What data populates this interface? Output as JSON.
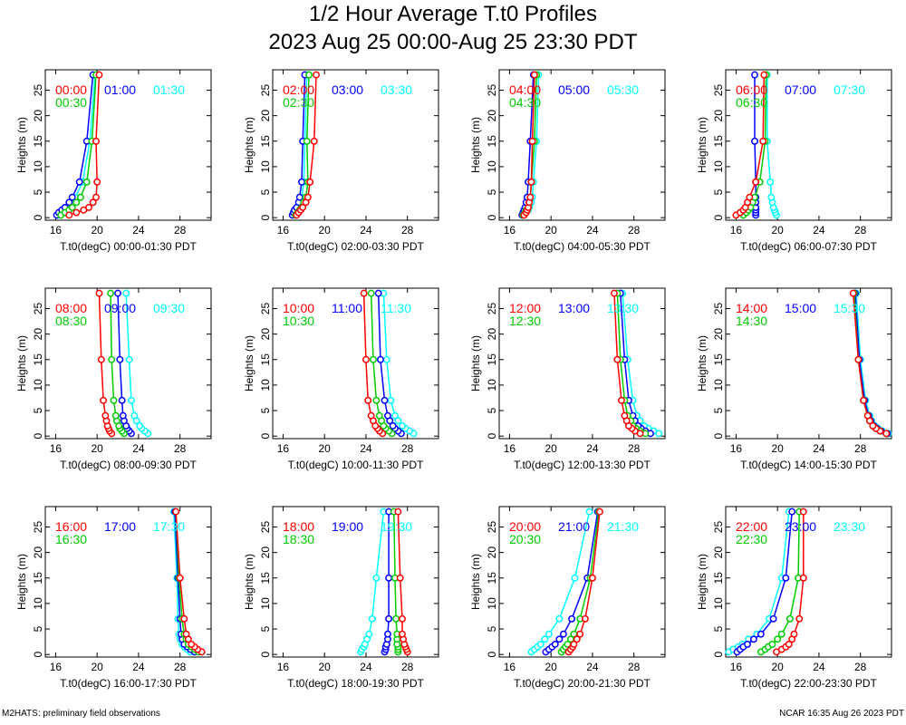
{
  "title": "1/2 Hour Average T.t0 Profiles",
  "subtitle": "2023 Aug 25 00:00-Aug 25 23:30 PDT",
  "footer_left": "M2HATS: preliminary field observations",
  "footer_right": "NCAR 16:35 Aug 26 2023 PDT",
  "series_colors": [
    "#ff0000",
    "#0000ff",
    "#00ffff",
    "#00cc00"
  ],
  "chart_data": [
    {
      "type": "line",
      "xlabel": "T.t0(degC) 00:00-01:30 PDT",
      "ylabel": "Heights (m)",
      "xlim": [
        15,
        31
      ],
      "ylim": [
        -0.5,
        29
      ],
      "xticks": [
        16,
        20,
        24,
        28
      ],
      "yticks": [
        0,
        5,
        10,
        15,
        20,
        25
      ],
      "heights": [
        0.5,
        1,
        1.5,
        2,
        3,
        4,
        7,
        15,
        28
      ],
      "series": [
        {
          "name": "00:00",
          "values": [
            17.3,
            18,
            18.7,
            19.2,
            19.6,
            19.9,
            20,
            19.9,
            20.2
          ]
        },
        {
          "name": "01:00",
          "values": [
            16.1,
            16.3,
            16.6,
            16.9,
            17.3,
            17.6,
            18.3,
            19,
            19.6
          ]
        },
        {
          "name": "01:30",
          "values": [
            16.2,
            16.5,
            16.8,
            17.1,
            17.6,
            17.9,
            18.6,
            19.3,
            19.8
          ]
        },
        {
          "name": "00:30",
          "values": [
            16.5,
            16.9,
            17.3,
            17.6,
            18,
            18.4,
            19,
            19.5,
            19.9
          ]
        }
      ]
    },
    {
      "type": "line",
      "xlabel": "T.t0(degC) 02:00-03:30 PDT",
      "ylabel": "Heights (m)",
      "xlim": [
        15,
        31
      ],
      "ylim": [
        -0.5,
        29
      ],
      "xticks": [
        16,
        20,
        24,
        28
      ],
      "yticks": [
        0,
        5,
        10,
        15,
        20,
        25
      ],
      "heights": [
        0.5,
        1,
        1.5,
        2,
        3,
        4,
        7,
        15,
        28
      ],
      "series": [
        {
          "name": "02:00",
          "values": [
            17.3,
            17.5,
            17.7,
            17.9,
            18.2,
            18.4,
            18.6,
            19,
            19.2
          ]
        },
        {
          "name": "03:00",
          "values": [
            16.9,
            17,
            17.1,
            17.3,
            17.5,
            17.6,
            17.8,
            17.9,
            18.1
          ]
        },
        {
          "name": "03:30",
          "values": [
            17.1,
            17.2,
            17.3,
            17.5,
            17.7,
            17.8,
            18,
            18.1,
            18.3
          ]
        },
        {
          "name": "02:30",
          "values": [
            17.2,
            17.4,
            17.6,
            17.8,
            18,
            18.2,
            18.4,
            18.3,
            18.5
          ]
        }
      ]
    },
    {
      "type": "line",
      "xlabel": "T.t0(degC) 04:00-05:30 PDT",
      "ylabel": "Heights (m)",
      "xlim": [
        15,
        31
      ],
      "ylim": [
        -0.5,
        29
      ],
      "xticks": [
        16,
        20,
        24,
        28
      ],
      "yticks": [
        0,
        5,
        10,
        15,
        20,
        25
      ],
      "heights": [
        0.5,
        1,
        1.5,
        2,
        3,
        4,
        7,
        15,
        28
      ],
      "series": [
        {
          "name": "04:00",
          "values": [
            17.4,
            17.6,
            17.7,
            17.8,
            17.9,
            18,
            18.1,
            18.2,
            18.4
          ]
        },
        {
          "name": "05:00",
          "values": [
            17.2,
            17.3,
            17.4,
            17.5,
            17.6,
            17.7,
            17.8,
            18,
            18.3
          ]
        },
        {
          "name": "05:30",
          "values": [
            17.4,
            17.6,
            17.8,
            17.9,
            18.1,
            18.2,
            18.3,
            18.6,
            18.8
          ]
        },
        {
          "name": "04:30",
          "values": [
            17.3,
            17.5,
            17.6,
            17.8,
            17.9,
            18,
            18.1,
            18.4,
            18.6
          ]
        }
      ]
    },
    {
      "type": "line",
      "xlabel": "T.t0(degC) 06:00-07:30 PDT",
      "ylabel": "Heights (m)",
      "xlim": [
        15,
        31
      ],
      "ylim": [
        -0.5,
        29
      ],
      "xticks": [
        16,
        20,
        24,
        28
      ],
      "yticks": [
        0,
        5,
        10,
        15,
        20,
        25
      ],
      "heights": [
        0.5,
        1,
        1.5,
        2,
        3,
        4,
        7,
        15,
        28
      ],
      "series": [
        {
          "name": "06:00",
          "values": [
            16,
            16.4,
            16.7,
            16.9,
            17.1,
            17.3,
            17.9,
            18.6,
            18.7
          ]
        },
        {
          "name": "07:00",
          "values": [
            17.9,
            17.9,
            17.9,
            17.9,
            17.9,
            17.9,
            17.9,
            17.8,
            17.8
          ]
        },
        {
          "name": "07:30",
          "values": [
            19.9,
            19.8,
            19.7,
            19.6,
            19.5,
            19.4,
            19.3,
            19,
            19
          ]
        },
        {
          "name": "06:30",
          "values": [
            16.7,
            17,
            17.2,
            17.4,
            17.6,
            17.8,
            18.3,
            18.8,
            18.9
          ]
        }
      ]
    },
    {
      "type": "line",
      "xlabel": "T.t0(degC) 08:00-09:30 PDT",
      "ylabel": "Heights (m)",
      "xlim": [
        15,
        31
      ],
      "ylim": [
        -0.5,
        29
      ],
      "xticks": [
        16,
        20,
        24,
        28
      ],
      "yticks": [
        0,
        5,
        10,
        15,
        20,
        25
      ],
      "heights": [
        0.5,
        1,
        1.5,
        2,
        3,
        4,
        7,
        15,
        28
      ],
      "series": [
        {
          "name": "08:00",
          "values": [
            21.4,
            21.2,
            21.1,
            21,
            20.9,
            20.8,
            20.6,
            20.4,
            20.2
          ]
        },
        {
          "name": "09:00",
          "values": [
            23.3,
            23.1,
            22.9,
            22.8,
            22.6,
            22.5,
            22.4,
            22.2,
            22
          ]
        },
        {
          "name": "09:30",
          "values": [
            24.9,
            24.6,
            24.3,
            24.1,
            23.8,
            23.6,
            23.3,
            23.1,
            22.8
          ]
        },
        {
          "name": "08:30",
          "values": [
            22.6,
            22.4,
            22.2,
            22.1,
            21.9,
            21.8,
            21.6,
            21.4,
            21.3
          ]
        }
      ]
    },
    {
      "type": "line",
      "xlabel": "T.t0(degC) 10:00-11:30 PDT",
      "ylabel": "Heights (m)",
      "xlim": [
        15,
        31
      ],
      "ylim": [
        -0.5,
        29
      ],
      "xticks": [
        16,
        20,
        24,
        28
      ],
      "yticks": [
        0,
        5,
        10,
        15,
        20,
        25
      ],
      "heights": [
        0.5,
        1,
        1.5,
        2,
        3,
        4,
        7,
        15,
        28
      ],
      "series": [
        {
          "name": "10:00",
          "values": [
            25.6,
            25.3,
            25.1,
            24.9,
            24.7,
            24.5,
            24.2,
            24,
            23.8
          ]
        },
        {
          "name": "11:00",
          "values": [
            27.4,
            27.1,
            26.8,
            26.6,
            26.3,
            26.1,
            25.8,
            25.4,
            25.2
          ]
        },
        {
          "name": "11:30",
          "values": [
            28.6,
            28.2,
            27.8,
            27.5,
            27.1,
            26.8,
            26.4,
            26,
            25.7
          ]
        },
        {
          "name": "10:30",
          "values": [
            26.5,
            26.2,
            25.9,
            25.7,
            25.5,
            25.3,
            25,
            24.7,
            24.5
          ]
        }
      ]
    },
    {
      "type": "line",
      "xlabel": "T.t0(degC) 12:00-13:30 PDT",
      "ylabel": "Heights (m)",
      "xlim": [
        15,
        31
      ],
      "ylim": [
        -0.5,
        29
      ],
      "xticks": [
        16,
        20,
        24,
        28
      ],
      "yticks": [
        0,
        5,
        10,
        15,
        20,
        25
      ],
      "heights": [
        0.5,
        1,
        1.5,
        2,
        3,
        4,
        7,
        15,
        28
      ],
      "series": [
        {
          "name": "12:00",
          "values": [
            28.6,
            28.1,
            27.8,
            27.5,
            27.3,
            27.1,
            26.8,
            26.4,
            26.1
          ]
        },
        {
          "name": "13:00",
          "values": [
            29.6,
            29.1,
            28.7,
            28.4,
            28.1,
            27.9,
            27.5,
            27.1,
            26.7
          ]
        },
        {
          "name": "13:30",
          "values": [
            30.4,
            29.9,
            29.4,
            29,
            28.6,
            28.3,
            27.9,
            27.4,
            26.9
          ]
        },
        {
          "name": "12:30",
          "values": [
            29.1,
            28.6,
            28.2,
            27.9,
            27.7,
            27.4,
            27.1,
            26.7,
            26.4
          ]
        }
      ]
    },
    {
      "type": "line",
      "xlabel": "T.t0(degC) 14:00-15:30 PDT",
      "ylabel": "Heights (m)",
      "xlim": [
        15,
        31
      ],
      "ylim": [
        -0.5,
        29
      ],
      "xticks": [
        16,
        20,
        24,
        28
      ],
      "yticks": [
        0,
        5,
        10,
        15,
        20,
        25
      ],
      "heights": [
        0.5,
        1,
        1.5,
        2,
        3,
        4,
        7,
        15,
        28
      ],
      "series": [
        {
          "name": "14:00",
          "values": [
            30.5,
            29.9,
            29.5,
            29.2,
            28.9,
            28.7,
            28.3,
            27.8,
            27.3
          ]
        },
        {
          "name": "15:00",
          "values": [
            30.6,
            30,
            29.6,
            29.3,
            29,
            28.8,
            28.4,
            27.9,
            27.5
          ]
        },
        {
          "name": "15:30",
          "values": [
            30.7,
            30.1,
            29.7,
            29.4,
            29.1,
            28.9,
            28.5,
            28,
            27.6
          ]
        },
        {
          "name": "14:30",
          "values": [
            30.5,
            29.9,
            29.5,
            29.2,
            28.9,
            28.7,
            28.3,
            27.8,
            27.4
          ]
        }
      ]
    },
    {
      "type": "line",
      "xlabel": "T.t0(degC) 16:00-17:30 PDT",
      "ylabel": "Heights (m)",
      "xlim": [
        15,
        31
      ],
      "ylim": [
        -0.5,
        29
      ],
      "xticks": [
        16,
        20,
        24,
        28
      ],
      "yticks": [
        0,
        5,
        10,
        15,
        20,
        25
      ],
      "heights": [
        0.5,
        1,
        1.5,
        2,
        3,
        4,
        7,
        15,
        28
      ],
      "series": [
        {
          "name": "16:00",
          "values": [
            30.1,
            29.7,
            29.4,
            29.1,
            28.8,
            28.6,
            28.4,
            28,
            27.6
          ]
        },
        {
          "name": "17:00",
          "values": [
            29.4,
            29,
            28.7,
            28.4,
            28.2,
            28.1,
            28,
            27.8,
            27.5
          ]
        },
        {
          "name": "17:30",
          "values": [
            29,
            28.7,
            28.4,
            28.2,
            28,
            27.9,
            27.8,
            27.7,
            27.4
          ]
        },
        {
          "name": "16:30",
          "values": [
            29.8,
            29.4,
            29.1,
            28.8,
            28.6,
            28.4,
            28.2,
            27.9,
            27.6
          ]
        }
      ]
    },
    {
      "type": "line",
      "xlabel": "T.t0(degC) 18:00-19:30 PDT",
      "ylabel": "Heights (m)",
      "xlim": [
        15,
        31
      ],
      "ylim": [
        -0.5,
        29
      ],
      "xticks": [
        16,
        20,
        24,
        28
      ],
      "yticks": [
        0,
        5,
        10,
        15,
        20,
        25
      ],
      "heights": [
        0.5,
        1,
        1.5,
        2,
        3,
        4,
        7,
        15,
        28
      ],
      "series": [
        {
          "name": "18:00",
          "values": [
            28,
            27.9,
            27.8,
            27.7,
            27.6,
            27.5,
            27.5,
            27.3,
            27.1
          ]
        },
        {
          "name": "19:00",
          "values": [
            25.8,
            25.9,
            25.9,
            26,
            26.1,
            26.1,
            26.2,
            26.2,
            26.2
          ]
        },
        {
          "name": "19:30",
          "values": [
            23.5,
            23.6,
            23.8,
            23.9,
            24.1,
            24.3,
            24.6,
            25,
            25.7
          ]
        },
        {
          "name": "18:30",
          "values": [
            27.1,
            27.1,
            27.1,
            27,
            27,
            27,
            26.9,
            26.8,
            26.7
          ]
        }
      ]
    },
    {
      "type": "line",
      "xlabel": "T.t0(degC) 20:00-21:30 PDT",
      "ylabel": "Heights (m)",
      "xlim": [
        15,
        31
      ],
      "ylim": [
        -0.5,
        29
      ],
      "xticks": [
        16,
        20,
        24,
        28
      ],
      "yticks": [
        0,
        5,
        10,
        15,
        20,
        25
      ],
      "heights": [
        0.5,
        1,
        1.5,
        2,
        3,
        4,
        7,
        15,
        28
      ],
      "series": [
        {
          "name": "20:00",
          "values": [
            21.7,
            21.9,
            22.1,
            22.2,
            22.5,
            22.8,
            23.3,
            24,
            24.7
          ]
        },
        {
          "name": "21:00",
          "values": [
            19.5,
            19.8,
            20.1,
            20.4,
            20.8,
            21.2,
            22,
            23.5,
            24.5
          ]
        },
        {
          "name": "21:30",
          "values": [
            18.1,
            18.4,
            18.7,
            19,
            19.4,
            19.8,
            20.8,
            22.3,
            23.7
          ]
        },
        {
          "name": "20:30",
          "values": [
            21,
            21.2,
            21.4,
            21.6,
            21.9,
            22.2,
            22.8,
            23.8,
            24.6
          ]
        }
      ]
    },
    {
      "type": "line",
      "xlabel": "T.t0(degC) 22:00-23:30 PDT",
      "ylabel": "Heights (m)",
      "xlim": [
        15,
        31
      ],
      "ylim": [
        -0.5,
        29
      ],
      "xticks": [
        16,
        20,
        24,
        28
      ],
      "yticks": [
        0,
        5,
        10,
        15,
        20,
        25
      ],
      "heights": [
        0.5,
        1,
        1.5,
        2,
        3,
        4,
        7,
        15,
        28
      ],
      "series": [
        {
          "name": "22:00",
          "values": [
            19.9,
            20.4,
            20.8,
            21.1,
            21.4,
            21.6,
            22.1,
            22.5,
            22.5
          ]
        },
        {
          "name": "23:00",
          "values": [
            16.1,
            16.4,
            16.7,
            17.1,
            17.7,
            18.4,
            19.6,
            20.8,
            21.4
          ]
        },
        {
          "name": "23:30",
          "values": [
            15.3,
            15.7,
            16.2,
            16.6,
            17.2,
            18,
            19.2,
            20.4,
            21.1
          ]
        },
        {
          "name": "22:30",
          "values": [
            18.4,
            18.8,
            19.1,
            19.5,
            20,
            20.4,
            21.2,
            22,
            22.1
          ]
        }
      ]
    }
  ]
}
